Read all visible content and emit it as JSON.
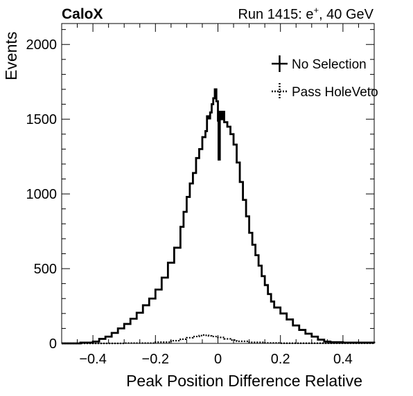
{
  "header": {
    "experiment": "CaloX",
    "run_prefix": "Run 1415: e",
    "run_sup": "+",
    "run_suffix": ", 40 GeV"
  },
  "chart_data": {
    "type": "histogram-step",
    "title": "",
    "xlabel": "Peak Position Difference Relative",
    "ylabel": "Events",
    "xlim": [
      -0.5,
      0.5
    ],
    "ylim": [
      0,
      2140
    ],
    "x_ticks": [
      -0.4,
      -0.2,
      0,
      0.2,
      0.4
    ],
    "x_tick_labels": [
      "−0.4",
      "−0.2",
      "0",
      "0.2",
      "0.4"
    ],
    "y_ticks": [
      0,
      500,
      1000,
      1500,
      2000
    ],
    "y_tick_labels": [
      "0",
      "500",
      "1000",
      "1500",
      "2000"
    ],
    "grid": false,
    "legend_position": "top-right",
    "series": [
      {
        "name": "No Selection",
        "style": "solid",
        "color": "#000000",
        "points": [
          [
            -0.5,
            0
          ],
          [
            -0.44,
            5
          ],
          [
            -0.4,
            12
          ],
          [
            -0.38,
            30
          ],
          [
            -0.36,
            45
          ],
          [
            -0.34,
            70
          ],
          [
            -0.32,
            100
          ],
          [
            -0.3,
            130
          ],
          [
            -0.28,
            165
          ],
          [
            -0.26,
            205
          ],
          [
            -0.24,
            255
          ],
          [
            -0.22,
            300
          ],
          [
            -0.2,
            360
          ],
          [
            -0.18,
            440
          ],
          [
            -0.16,
            540
          ],
          [
            -0.14,
            640
          ],
          [
            -0.12,
            780
          ],
          [
            -0.11,
            880
          ],
          [
            -0.1,
            980
          ],
          [
            -0.09,
            1070
          ],
          [
            -0.08,
            1140
          ],
          [
            -0.07,
            1240
          ],
          [
            -0.06,
            1300
          ],
          [
            -0.05,
            1380
          ],
          [
            -0.04,
            1420
          ],
          [
            -0.035,
            1520
          ],
          [
            -0.03,
            1505
          ],
          [
            -0.025,
            1545
          ],
          [
            -0.02,
            1600
          ],
          [
            -0.015,
            1640
          ],
          [
            -0.01,
            1700
          ],
          [
            -0.005,
            1620
          ],
          [
            0.0,
            1490
          ],
          [
            0.002,
            1230
          ],
          [
            0.006,
            1550
          ],
          [
            0.01,
            1500
          ],
          [
            0.015,
            1550
          ],
          [
            0.02,
            1480
          ],
          [
            0.03,
            1450
          ],
          [
            0.04,
            1400
          ],
          [
            0.05,
            1330
          ],
          [
            0.06,
            1210
          ],
          [
            0.07,
            1080
          ],
          [
            0.08,
            960
          ],
          [
            0.09,
            850
          ],
          [
            0.1,
            740
          ],
          [
            0.11,
            660
          ],
          [
            0.12,
            590
          ],
          [
            0.13,
            520
          ],
          [
            0.14,
            450
          ],
          [
            0.15,
            390
          ],
          [
            0.16,
            330
          ],
          [
            0.17,
            280
          ],
          [
            0.18,
            240
          ],
          [
            0.2,
            200
          ],
          [
            0.22,
            160
          ],
          [
            0.24,
            120
          ],
          [
            0.26,
            90
          ],
          [
            0.28,
            65
          ],
          [
            0.3,
            45
          ],
          [
            0.32,
            25
          ],
          [
            0.34,
            12
          ],
          [
            0.36,
            8
          ],
          [
            0.4,
            5
          ],
          [
            0.5,
            2
          ]
        ]
      },
      {
        "name": "Pass HoleVeto",
        "style": "dotted",
        "color": "#000000",
        "points": [
          [
            -0.5,
            0
          ],
          [
            -0.3,
            2
          ],
          [
            -0.2,
            8
          ],
          [
            -0.15,
            18
          ],
          [
            -0.12,
            28
          ],
          [
            -0.1,
            38
          ],
          [
            -0.08,
            46
          ],
          [
            -0.06,
            52
          ],
          [
            -0.05,
            56
          ],
          [
            -0.04,
            54
          ],
          [
            -0.03,
            50
          ],
          [
            -0.02,
            46
          ],
          [
            0.0,
            40
          ],
          [
            0.02,
            30
          ],
          [
            0.04,
            22
          ],
          [
            0.06,
            14
          ],
          [
            0.1,
            7
          ],
          [
            0.15,
            3
          ],
          [
            0.2,
            1
          ],
          [
            0.5,
            0
          ]
        ]
      }
    ]
  }
}
